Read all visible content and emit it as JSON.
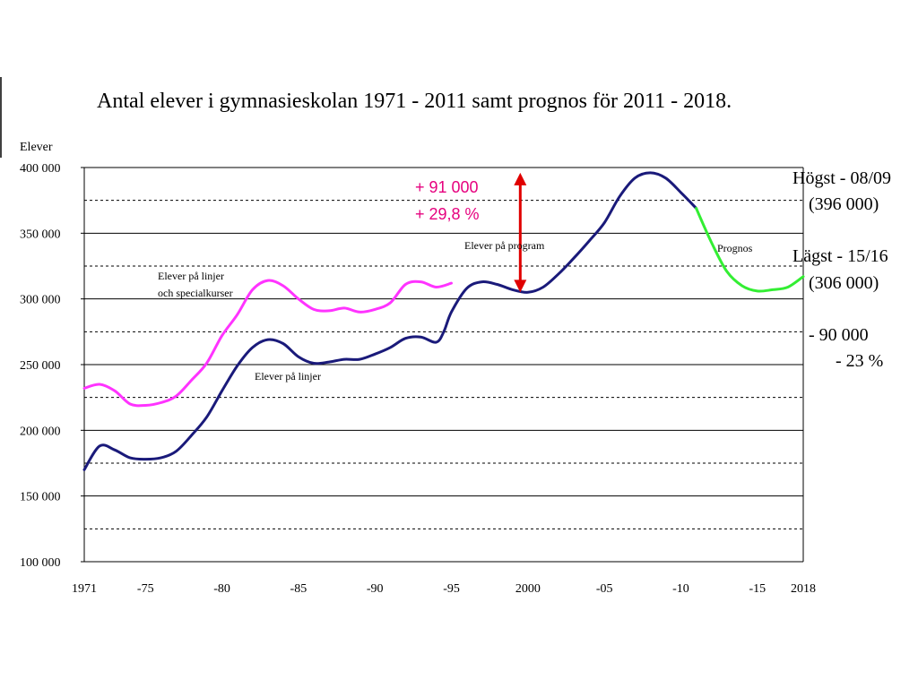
{
  "chart_data": {
    "type": "line",
    "title": "Antal elever i gymnasieskolan 1971 - 2011 samt prognos för 2011 - 2018.",
    "ylabel": "Elever",
    "xlabel": "",
    "xlim": [
      1971,
      2018
    ],
    "ylim": [
      100000,
      400000
    ],
    "grid": "solid major lines every 50 000, dashed minor lines every 25 000",
    "y_ticks": [
      {
        "value": 100000,
        "label": "100 000"
      },
      {
        "value": 150000,
        "label": "150 000"
      },
      {
        "value": 200000,
        "label": "200 000"
      },
      {
        "value": 250000,
        "label": "250 000"
      },
      {
        "value": 300000,
        "label": "300 000"
      },
      {
        "value": 350000,
        "label": "350 000"
      },
      {
        "value": 400000,
        "label": "400 000"
      }
    ],
    "x_ticks": [
      {
        "value": 1971,
        "label": "1971"
      },
      {
        "value": 1975,
        "label": "-75"
      },
      {
        "value": 1980,
        "label": "-80"
      },
      {
        "value": 1985,
        "label": "-85"
      },
      {
        "value": 1990,
        "label": "-90"
      },
      {
        "value": 1995,
        "label": "-95"
      },
      {
        "value": 2000,
        "label": "2000"
      },
      {
        "value": 2005,
        "label": "-05"
      },
      {
        "value": 2010,
        "label": "-10"
      },
      {
        "value": 2015,
        "label": "-15"
      },
      {
        "value": 2018,
        "label": "2018"
      }
    ],
    "series": [
      {
        "color": "#ff33ff",
        "x": [
          1971,
          1972,
          1973,
          1974,
          1975,
          1976,
          1977,
          1978,
          1979,
          1980,
          1981,
          1982,
          1983,
          1984,
          1985,
          1986,
          1987,
          1988,
          1989,
          1990,
          1991,
          1992,
          1993,
          1994,
          1995
        ],
        "y": [
          232000,
          235000,
          230000,
          220000,
          219000,
          221000,
          226000,
          238000,
          251000,
          272000,
          288000,
          307000,
          314000,
          310000,
          300000,
          292000,
          291000,
          293000,
          290000,
          292000,
          297000,
          311000,
          313000,
          309000,
          312000
        ]
      },
      {
        "color": "#1a1a7a",
        "x": [
          1971,
          1972,
          1973,
          1974,
          1975,
          1976,
          1977,
          1978,
          1979,
          1980,
          1981,
          1982,
          1983,
          1984,
          1985,
          1986,
          1987,
          1988,
          1989,
          1990,
          1991,
          1992,
          1993,
          1994,
          1994.5,
          1995,
          1996,
          1997,
          1998,
          1999,
          2000,
          2001,
          2002,
          2003,
          2004,
          2005,
          2006,
          2007,
          2008,
          2009,
          2010,
          2011
        ],
        "y": [
          170000,
          188000,
          185000,
          179000,
          178000,
          179000,
          184000,
          196000,
          210000,
          230000,
          249000,
          263000,
          269000,
          266000,
          256000,
          251000,
          252000,
          254000,
          254000,
          258000,
          263000,
          270000,
          271000,
          267000,
          275000,
          290000,
          308000,
          313000,
          311000,
          307000,
          305000,
          309000,
          319000,
          331000,
          344000,
          358000,
          378000,
          392000,
          396000,
          392000,
          381000,
          369000
        ]
      },
      {
        "color": "#33ee33",
        "x": [
          2011,
          2012,
          2013,
          2014,
          2015,
          2016,
          2017,
          2018
        ],
        "y": [
          369000,
          343000,
          321000,
          310000,
          306000,
          307000,
          309000,
          317000
        ]
      }
    ],
    "annotations": {
      "pink_series_label_line1": "Elever på linjer",
      "pink_series_label_line2": "och specialkurser",
      "navy_series_label": "Elever på linjer",
      "program_label": "Elever på program",
      "forecast_label": "Prognos",
      "increase_abs": "+ 91 000",
      "increase_pct": "+ 29,8 %",
      "highest_label": "Högst - 08/09",
      "highest_value": "(396 000)",
      "lowest_label": "Lägst - 15/16",
      "lowest_value": "(306 000)",
      "decrease_abs": "- 90 000",
      "decrease_pct": "- 23 %"
    },
    "arrow": {
      "x": 1999.5,
      "y_from": 305000,
      "y_to": 396000,
      "color": "#e00000"
    }
  }
}
